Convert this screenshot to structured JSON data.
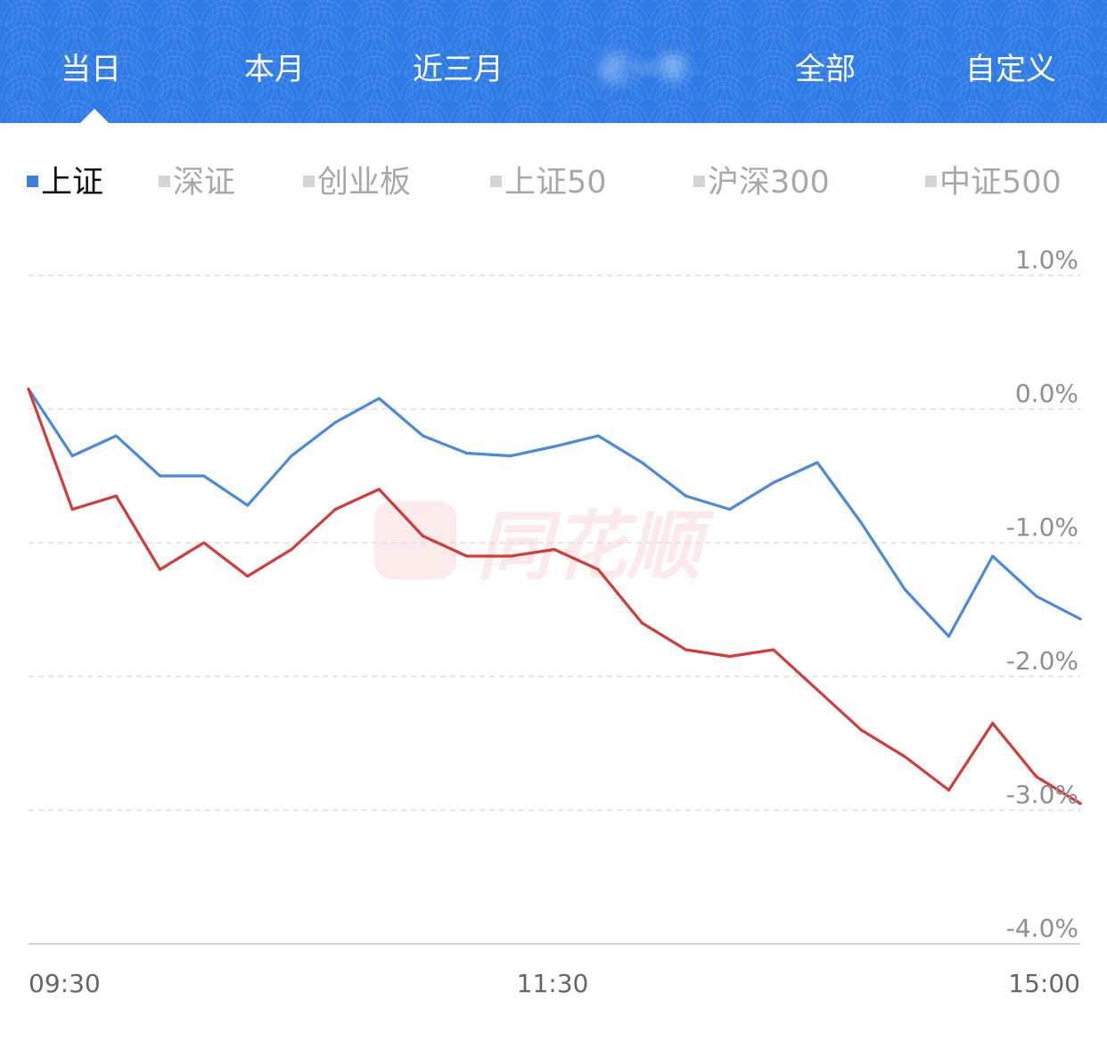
{
  "range_tabs": [
    {
      "label": "当日",
      "active": true
    },
    {
      "label": "本月",
      "active": false
    },
    {
      "label": "近三月",
      "active": false
    },
    {
      "label": "近一年",
      "active": false,
      "blurred": true
    },
    {
      "label": "全部",
      "active": false
    },
    {
      "label": "自定义",
      "active": false
    }
  ],
  "index_tabs": [
    {
      "label": "上证",
      "active": true,
      "marker_color": "#3d7fe0"
    },
    {
      "label": "深证",
      "active": false,
      "marker_color": "#d4d4d4"
    },
    {
      "label": "创业板",
      "active": false,
      "marker_color": "#d4d4d4"
    },
    {
      "label": "上证50",
      "active": false,
      "marker_color": "#d4d4d4"
    },
    {
      "label": "沪深300",
      "active": false,
      "marker_color": "#d4d4d4"
    },
    {
      "label": "中证500",
      "active": false,
      "marker_color": "#d4d4d4"
    }
  ],
  "watermark": {
    "text": "同花顺",
    "icon": "ths-logo-icon"
  },
  "colors": {
    "header_blue": "#2f7be6",
    "series_blue": "#4a8ad8",
    "series_red": "#d23b38",
    "grid": "#dedede",
    "label_gray": "#8f8f8f"
  },
  "chart_data": {
    "type": "line",
    "title": "",
    "xlabel": "",
    "ylabel": "",
    "x_ticks": [
      "09:30",
      "11:30",
      "15:00"
    ],
    "y_ticks": [
      "1.0%",
      "0.0%",
      "-1.0%",
      "-2.0%",
      "-3.0%",
      "-4.0%"
    ],
    "ylim": [
      -4.0,
      1.0
    ],
    "grid": true,
    "x": [
      "09:30",
      "09:40",
      "09:50",
      "10:00",
      "10:10",
      "10:20",
      "10:30",
      "10:40",
      "10:50",
      "11:00",
      "11:10",
      "11:20",
      "11:30",
      "13:10",
      "13:20",
      "13:30",
      "13:40",
      "13:50",
      "14:00",
      "14:10",
      "14:20",
      "14:30",
      "14:40",
      "14:50",
      "15:00"
    ],
    "series": [
      {
        "color": "#4a8ad8",
        "values": [
          0.15,
          -0.35,
          -0.2,
          -0.5,
          -0.5,
          -0.72,
          -0.35,
          -0.1,
          0.08,
          -0.2,
          -0.33,
          -0.35,
          -0.28,
          -0.2,
          -0.4,
          -0.65,
          -0.75,
          -0.55,
          -0.4,
          -0.85,
          -1.35,
          -1.7,
          -1.1,
          -1.4,
          -1.57
        ]
      },
      {
        "color": "#d23b38",
        "values": [
          0.15,
          -0.75,
          -0.65,
          -1.2,
          -1.0,
          -1.25,
          -1.05,
          -0.75,
          -0.6,
          -0.95,
          -1.1,
          -1.1,
          -1.05,
          -1.2,
          -1.6,
          -1.8,
          -1.85,
          -1.8,
          -2.1,
          -2.4,
          -2.6,
          -2.85,
          -2.35,
          -2.75,
          -2.95
        ]
      }
    ]
  }
}
